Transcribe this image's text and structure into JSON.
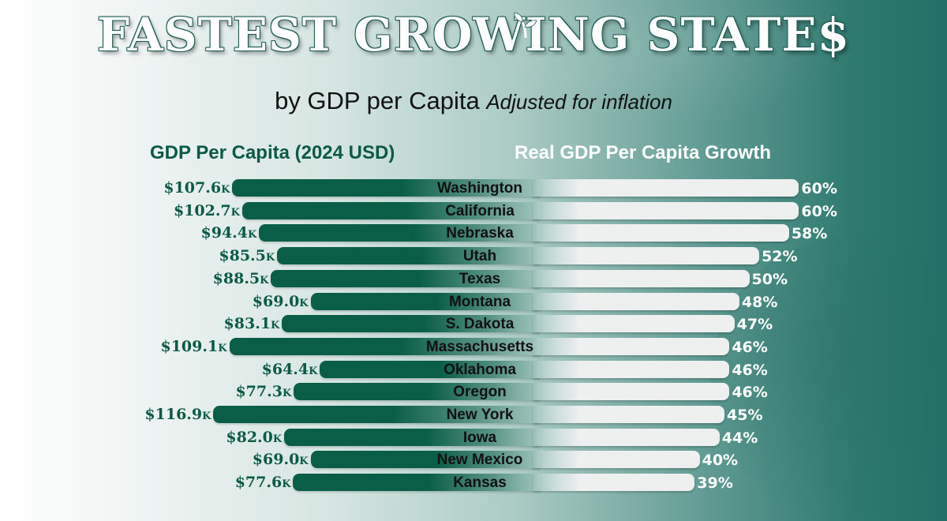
{
  "header": {
    "title": "Fastest Growing State$",
    "subtitle": "by GDP per Capita",
    "subtitle_note": "Adjusted for inflation"
  },
  "colors": {
    "gdp_bar": "#0a5e48",
    "growth_bar": "#eef0f0",
    "gdp_text": "#0b5a45",
    "background_dark": "#216f66"
  },
  "icons": {
    "title_decoration": "sprout-icon"
  },
  "chart_data": {
    "type": "bar",
    "title": "Fastest Growing State$ by GDP per Capita Adjusted for inflation",
    "categories": [
      "Washington",
      "California",
      "Nebraska",
      "Utah",
      "Texas",
      "Montana",
      "S. Dakota",
      "Massachusetts",
      "Oklahoma",
      "Oregon",
      "New York",
      "Iowa",
      "New Mexico",
      "Kansas"
    ],
    "series": [
      {
        "name": "GDP Per Capita (2024 USD)",
        "unit": "K USD",
        "direction": "left",
        "values": [
          107.6,
          102.7,
          94.4,
          85.5,
          88.5,
          69.0,
          83.1,
          109.1,
          64.4,
          77.3,
          116.9,
          82.0,
          69.0,
          77.6
        ],
        "labels": [
          "$107.6",
          "$102.7",
          "$94.4",
          "$85.5",
          "$88.5",
          "$69.0",
          "$83.1",
          "$109.1",
          "$64.4",
          "$77.3",
          "$116.9",
          "$82.0",
          "$69.0",
          "$77.6"
        ],
        "label_suffix": "K"
      },
      {
        "name": "Real GDP Per Capita Growth",
        "unit": "%",
        "direction": "right",
        "values": [
          60,
          60,
          58,
          52,
          50,
          48,
          47,
          46,
          46,
          46,
          45,
          44,
          40,
          39
        ],
        "labels": [
          "60%",
          "60%",
          "58%",
          "52%",
          "50%",
          "48%",
          "47%",
          "46%",
          "46%",
          "46%",
          "45%",
          "44%",
          "40%",
          "39%"
        ]
      }
    ],
    "legend": "none",
    "grid": false
  }
}
